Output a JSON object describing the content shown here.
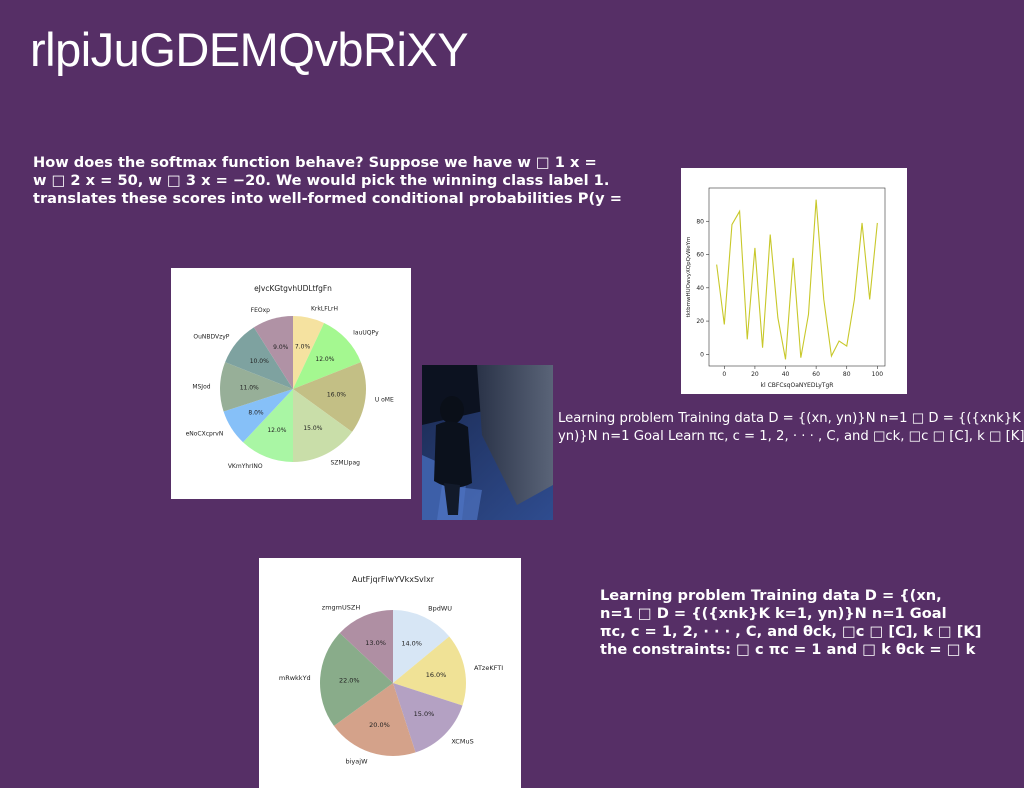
{
  "slide": {
    "title": "rlpiJuGDEMQvbRiXY",
    "block1_lines": [
      "How does the softmax function behave? Suppose we have w □ 1 x =",
      "w □ 2 x = 50, w □ 3 x = −20. We would pick the winning class label 1.",
      "translates these scores into well-formed conditional probabilities P(y ="
    ],
    "block2_lines": [
      "Learning problem Training data D = {(xn, yn)}N n=1 □ D = {({xnk}K",
      "yn)}N n=1 Goal Learn πc, c = 1, 2, · · · , C, and □ck, □c □ [C], k □ [K]"
    ],
    "block3_lines": [
      "Learning problem Training data D = {(xn,",
      "n=1 □ D = {({xnk}K k=1, yn)}N n=1 Goal",
      "πc, c = 1, 2, · · · , C, and θck, □c □ [C], k □ [K]",
      "the constraints: □ c πc = 1 and □ k θck = □ k"
    ]
  },
  "chart_data": [
    {
      "type": "pie",
      "title": "eJvcKGtgvhUDLtfgFn",
      "labels": [
        "KrkLFLrH",
        "IauUQPy",
        "U oME",
        "SZMLIpag",
        "VKmYhrINO",
        "eNoCXcprvN",
        "MSJod",
        "OuNBDVzyP",
        "FEOxp"
      ],
      "values": [
        7.0,
        12.0,
        16.0,
        15.0,
        12.0,
        8.0,
        11.0,
        10.0,
        9.0
      ],
      "value_labels": [
        "7.0%",
        "12.0%",
        "16.0%",
        "15.0%",
        "12.0%",
        "8.0%",
        "11.0%",
        "10.0%",
        "9.0%"
      ],
      "colors": [
        "#f5e2a0",
        "#a4f890",
        "#c3bf85",
        "#c9dea9",
        "#a9f6a4",
        "#86c0f8",
        "#97af98",
        "#7ea2a0",
        "#b092a5"
      ]
    },
    {
      "type": "line",
      "title": "",
      "xlabel": "kl CBFCsqOaNYEDLyTgR",
      "ylabel": "tktbmwHUOwvyXQpQvWeYm",
      "x": [
        -5,
        0,
        5,
        10,
        15,
        20,
        25,
        30,
        35,
        40,
        45,
        50,
        55,
        60,
        65,
        70,
        75,
        80,
        85,
        90,
        95,
        100
      ],
      "y": [
        54,
        18,
        78,
        86,
        9,
        64,
        4,
        72,
        22,
        -3,
        58,
        -2,
        24,
        93,
        33,
        -1,
        8,
        5,
        33,
        79,
        33,
        79
      ],
      "xticks": [
        0,
        20,
        40,
        60,
        80,
        100
      ],
      "yticks": [
        0,
        20,
        40,
        60,
        80
      ],
      "xlim": [
        -10,
        105
      ],
      "ylim": [
        -7,
        100
      ],
      "color": "#c8c82a"
    },
    {
      "type": "pie",
      "title": "AutFjqrFlwYVkxSvlxr",
      "labels": [
        "BpdWU",
        "ATzeKFTI",
        "XCMuS",
        "biyajW",
        "mRwkkYd",
        "zmgmUSZH"
      ],
      "values": [
        14.0,
        16.0,
        15.0,
        20.0,
        22.0,
        13.0
      ],
      "value_labels": [
        "14.0%",
        "16.0%",
        "15.0%",
        "20.0%",
        "22.0%",
        "13.0%"
      ],
      "colors": [
        "#d7e6f5",
        "#f0e296",
        "#b4a1c3",
        "#d4a28a",
        "#89ac8a",
        "#af8fa3"
      ]
    }
  ]
}
